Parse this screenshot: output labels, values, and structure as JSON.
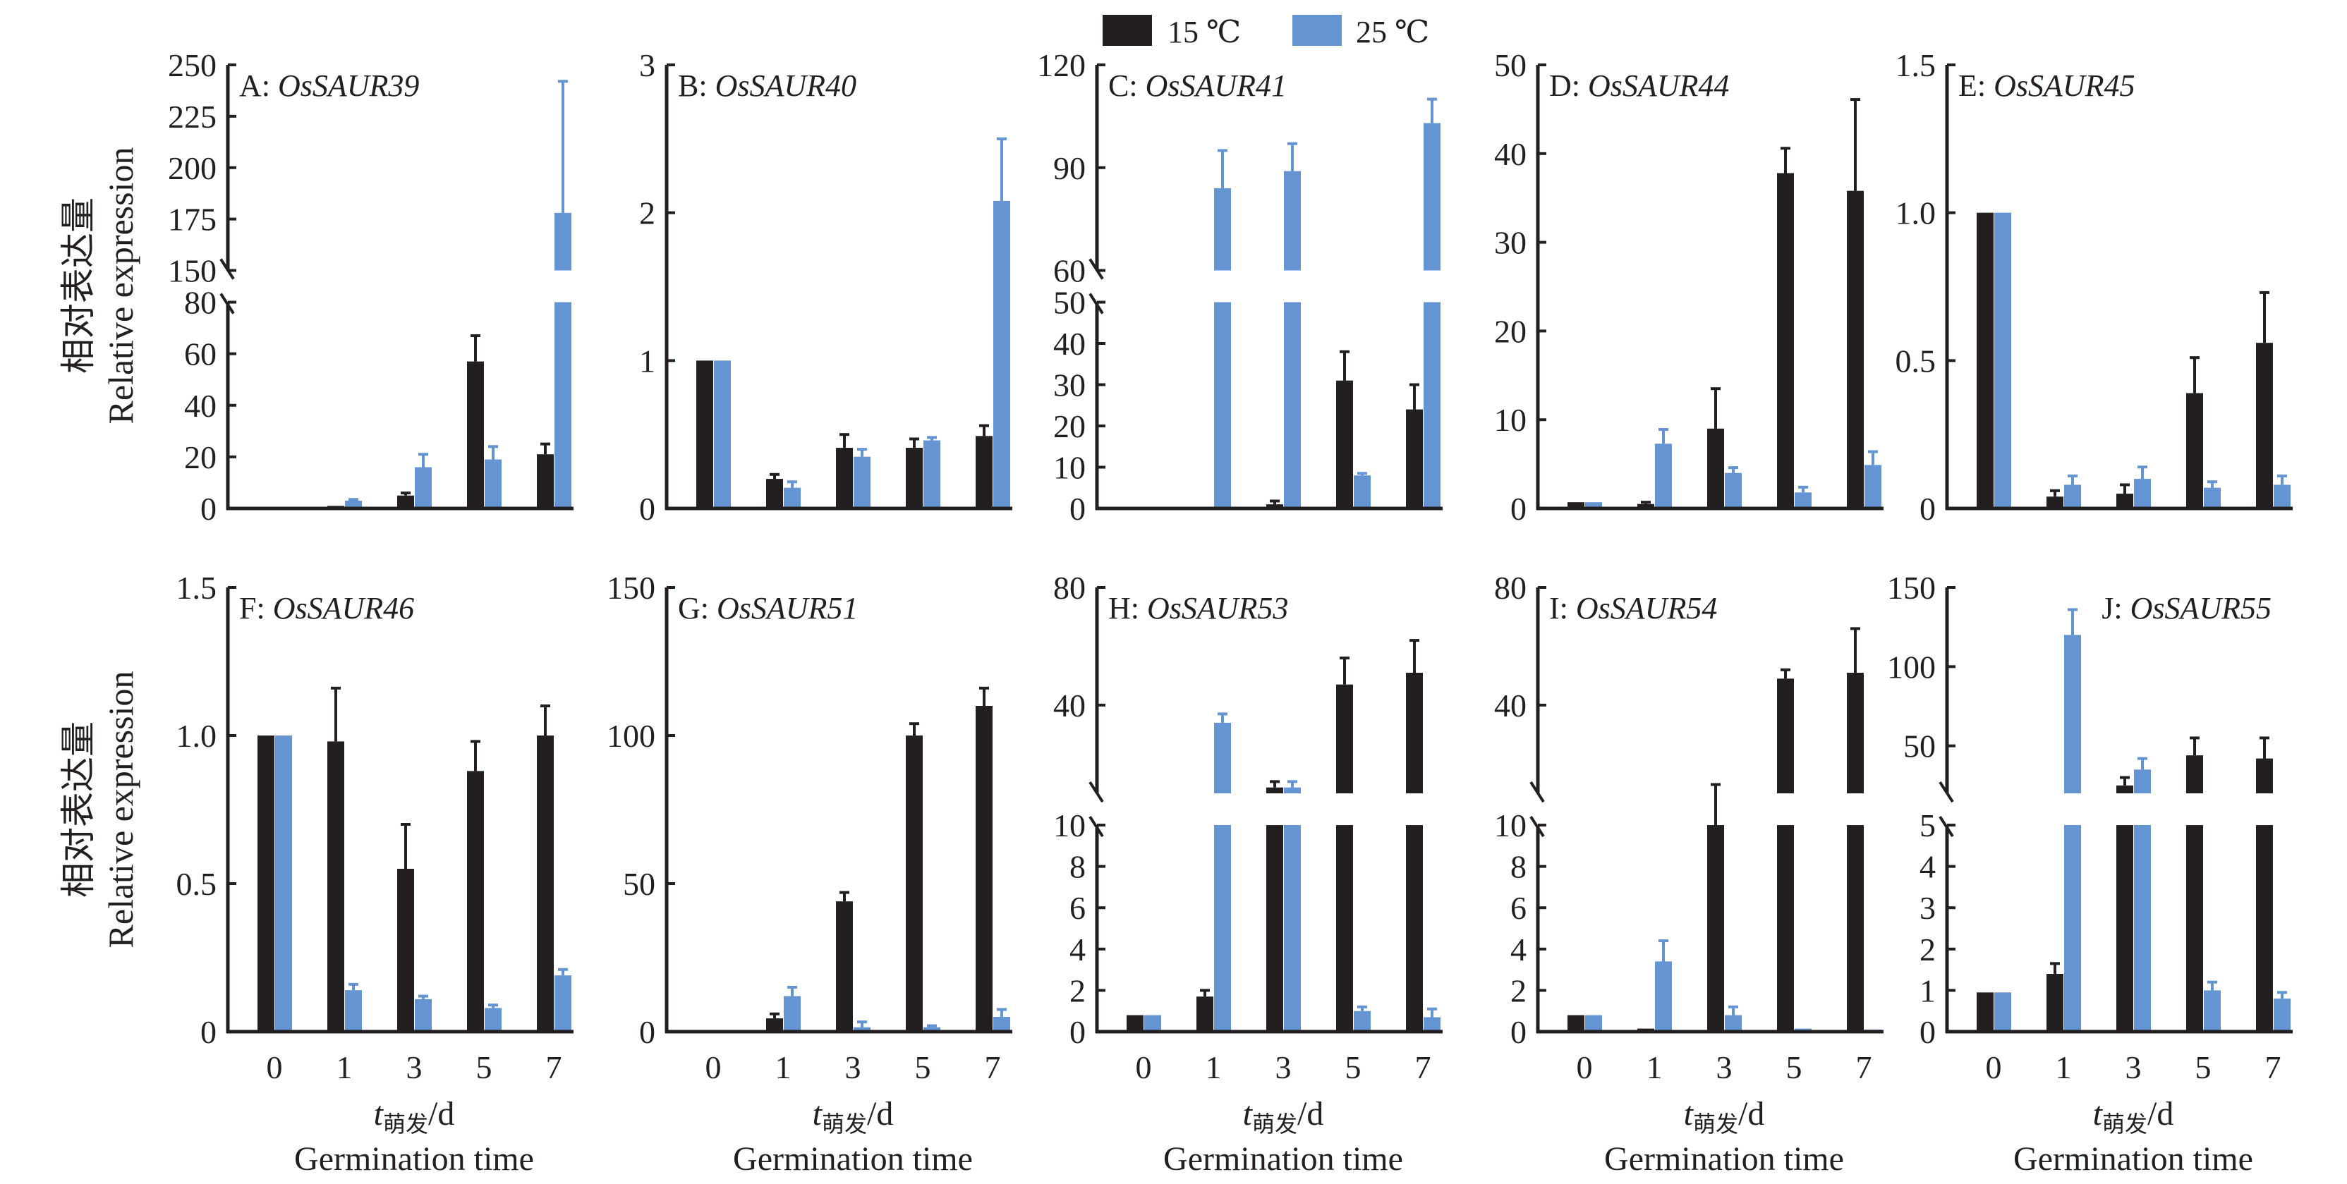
{
  "legend": {
    "items": [
      {
        "label": "15 ℃",
        "color": "#231f20"
      },
      {
        "label": "25 ℃",
        "color": "#6494d2"
      }
    ]
  },
  "y_axis_label": {
    "cn": "相对表达量",
    "en": "Relative expression"
  },
  "x_axis_label": {
    "t": "t",
    "sub": "萌发",
    "unit": "/d",
    "en": "Germination time"
  },
  "chart_data": [
    {
      "type": "bar",
      "panel": "A",
      "gene": "OsSAUR39",
      "categories": [
        "0",
        "1",
        "3",
        "5",
        "7"
      ],
      "series": [
        {
          "name": "15 ℃",
          "values": [
            0,
            1,
            5,
            57,
            21
          ],
          "errors": [
            0,
            0.5,
            6,
            67,
            25
          ]
        },
        {
          "name": "25 ℃",
          "values": [
            0,
            3,
            16,
            19,
            178
          ],
          "errors": [
            0,
            3.5,
            21,
            24,
            242
          ]
        }
      ],
      "axis_break": true,
      "lower": {
        "range": [
          0,
          80
        ],
        "ticks": [
          0,
          20,
          40,
          60,
          80
        ]
      },
      "upper": {
        "range": [
          150,
          250
        ],
        "ticks": [
          150,
          175,
          200,
          225,
          250
        ]
      }
    },
    {
      "type": "bar",
      "panel": "B",
      "gene": "OsSAUR40",
      "categories": [
        "0",
        "1",
        "3",
        "5",
        "7"
      ],
      "series": [
        {
          "name": "15 ℃",
          "values": [
            1,
            0.2,
            0.41,
            0.41,
            0.49
          ],
          "errors": [
            1,
            0.23,
            0.5,
            0.47,
            0.56
          ]
        },
        {
          "name": "25 ℃",
          "values": [
            1,
            0.14,
            0.35,
            0.46,
            2.08
          ],
          "errors": [
            1,
            0.18,
            0.4,
            0.48,
            2.5
          ]
        }
      ],
      "axis_break": false,
      "lower": {
        "range": [
          0,
          3
        ],
        "ticks": [
          0,
          1,
          2,
          3
        ]
      }
    },
    {
      "type": "bar",
      "panel": "C",
      "gene": "OsSAUR41",
      "categories": [
        "0",
        "1",
        "3",
        "5",
        "7"
      ],
      "series": [
        {
          "name": "15 ℃",
          "values": [
            0,
            0,
            1,
            31,
            24
          ],
          "errors": [
            0,
            0,
            1.8,
            38,
            30
          ]
        },
        {
          "name": "25 ℃",
          "values": [
            0,
            84,
            89,
            8,
            103
          ],
          "errors": [
            0,
            95,
            97,
            8.5,
            110
          ]
        }
      ],
      "axis_break": true,
      "lower": {
        "range": [
          0,
          50
        ],
        "ticks": [
          0,
          10,
          20,
          30,
          40,
          50
        ]
      },
      "upper": {
        "range": [
          60,
          120
        ],
        "ticks": [
          60,
          90,
          120
        ]
      }
    },
    {
      "type": "bar",
      "panel": "D",
      "gene": "OsSAUR44",
      "categories": [
        "0",
        "1",
        "3",
        "5",
        "7"
      ],
      "series": [
        {
          "name": "15 ℃",
          "values": [
            0.7,
            0.5,
            9.0,
            37.8,
            35.8
          ],
          "errors": [
            0.7,
            0.7,
            13.5,
            40.6,
            46.1
          ]
        },
        {
          "name": "25 ℃",
          "values": [
            0.7,
            7.3,
            4.0,
            1.8,
            4.9
          ],
          "errors": [
            0.7,
            8.9,
            4.6,
            2.4,
            6.4
          ]
        }
      ],
      "axis_break": false,
      "lower": {
        "range": [
          0,
          50
        ],
        "ticks": [
          0,
          10,
          20,
          30,
          40,
          50
        ]
      }
    },
    {
      "type": "bar",
      "panel": "E",
      "gene": "OsSAUR45",
      "categories": [
        "0",
        "1",
        "3",
        "5",
        "7"
      ],
      "series": [
        {
          "name": "15 ℃",
          "values": [
            1,
            0.04,
            0.05,
            0.39,
            0.56
          ],
          "errors": [
            1,
            0.06,
            0.08,
            0.51,
            0.73
          ]
        },
        {
          "name": "25 ℃",
          "values": [
            1,
            0.08,
            0.1,
            0.07,
            0.08
          ],
          "errors": [
            1,
            0.11,
            0.14,
            0.09,
            0.11
          ]
        }
      ],
      "axis_break": false,
      "lower": {
        "range": [
          0,
          1.5
        ],
        "ticks": [
          0,
          0.5,
          1.0,
          1.5
        ],
        "tick_labels": [
          "0",
          "0.5",
          "1.0",
          "1.5"
        ]
      }
    },
    {
      "type": "bar",
      "panel": "F",
      "gene": "OsSAUR46",
      "categories": [
        "0",
        "1",
        "3",
        "5",
        "7"
      ],
      "series": [
        {
          "name": "15 ℃",
          "values": [
            1,
            0.98,
            0.55,
            0.88,
            1.0
          ],
          "errors": [
            1,
            1.16,
            0.7,
            0.98,
            1.1
          ]
        },
        {
          "name": "25 ℃",
          "values": [
            1,
            0.14,
            0.11,
            0.08,
            0.19
          ],
          "errors": [
            1,
            0.16,
            0.12,
            0.09,
            0.21
          ]
        }
      ],
      "axis_break": false,
      "lower": {
        "range": [
          0,
          1.5
        ],
        "ticks": [
          0,
          0.5,
          1.0,
          1.5
        ],
        "tick_labels": [
          "0",
          "0.5",
          "1.0",
          "1.5"
        ]
      }
    },
    {
      "type": "bar",
      "panel": "G",
      "gene": "OsSAUR51",
      "categories": [
        "0",
        "1",
        "3",
        "5",
        "7"
      ],
      "series": [
        {
          "name": "15 ℃",
          "values": [
            0,
            4.5,
            44,
            100,
            110
          ],
          "errors": [
            0,
            6,
            47,
            104,
            116
          ]
        },
        {
          "name": "25 ℃",
          "values": [
            0,
            12,
            1.5,
            1.5,
            5
          ],
          "errors": [
            0,
            15,
            3.3,
            2,
            7.5
          ]
        }
      ],
      "axis_break": false,
      "lower": {
        "range": [
          0,
          150
        ],
        "ticks": [
          0,
          50,
          100,
          150
        ]
      }
    },
    {
      "type": "bar",
      "panel": "H",
      "gene": "OsSAUR53",
      "categories": [
        "0",
        "1",
        "3",
        "5",
        "7"
      ],
      "series": [
        {
          "name": "15 ℃",
          "values": [
            0.8,
            1.7,
            12,
            47,
            51
          ],
          "errors": [
            0.8,
            2.0,
            14,
            56,
            62
          ]
        },
        {
          "name": "25 ℃",
          "values": [
            0.8,
            34,
            12,
            1.0,
            0.7
          ],
          "errors": [
            0.8,
            37,
            14,
            1.2,
            1.1
          ]
        }
      ],
      "axis_break": true,
      "lower": {
        "range": [
          0,
          10
        ],
        "ticks": [
          0,
          2,
          4,
          6,
          8,
          10
        ]
      },
      "upper": {
        "range": [
          10,
          80
        ],
        "ticks": [
          40,
          80
        ]
      }
    },
    {
      "type": "bar",
      "panel": "I",
      "gene": "OsSAUR54",
      "categories": [
        "0",
        "1",
        "3",
        "5",
        "7"
      ],
      "series": [
        {
          "name": "15 ℃",
          "values": [
            0.8,
            0.15,
            10,
            49,
            51
          ],
          "errors": [
            0.8,
            0.15,
            13,
            52,
            66
          ]
        },
        {
          "name": "25 ℃",
          "values": [
            0.8,
            3.4,
            0.8,
            0.15,
            0.1
          ],
          "errors": [
            0.8,
            4.4,
            1.2,
            0.15,
            0.1
          ]
        }
      ],
      "axis_break": true,
      "lower": {
        "range": [
          0,
          10
        ],
        "ticks": [
          0,
          2,
          4,
          6,
          8,
          10
        ]
      },
      "upper": {
        "range": [
          10,
          80
        ],
        "ticks": [
          40,
          80
        ]
      }
    },
    {
      "type": "bar",
      "panel": "J",
      "gene": "OsSAUR55",
      "categories": [
        "0",
        "1",
        "3",
        "5",
        "7"
      ],
      "series": [
        {
          "name": "15 ℃",
          "values": [
            0.95,
            1.4,
            25,
            44,
            42
          ],
          "errors": [
            0.95,
            1.65,
            30,
            55,
            55
          ]
        },
        {
          "name": "25 ℃",
          "values": [
            0.95,
            120,
            35,
            1.0,
            0.8
          ],
          "errors": [
            0.95,
            136,
            42,
            1.2,
            0.95
          ]
        }
      ],
      "axis_break": true,
      "lower": {
        "range": [
          0,
          5
        ],
        "ticks": [
          0,
          1,
          2,
          3,
          4,
          5
        ]
      },
      "upper": {
        "range": [
          20,
          150
        ],
        "ticks": [
          50,
          100,
          150
        ]
      },
      "title_align": "right"
    }
  ]
}
